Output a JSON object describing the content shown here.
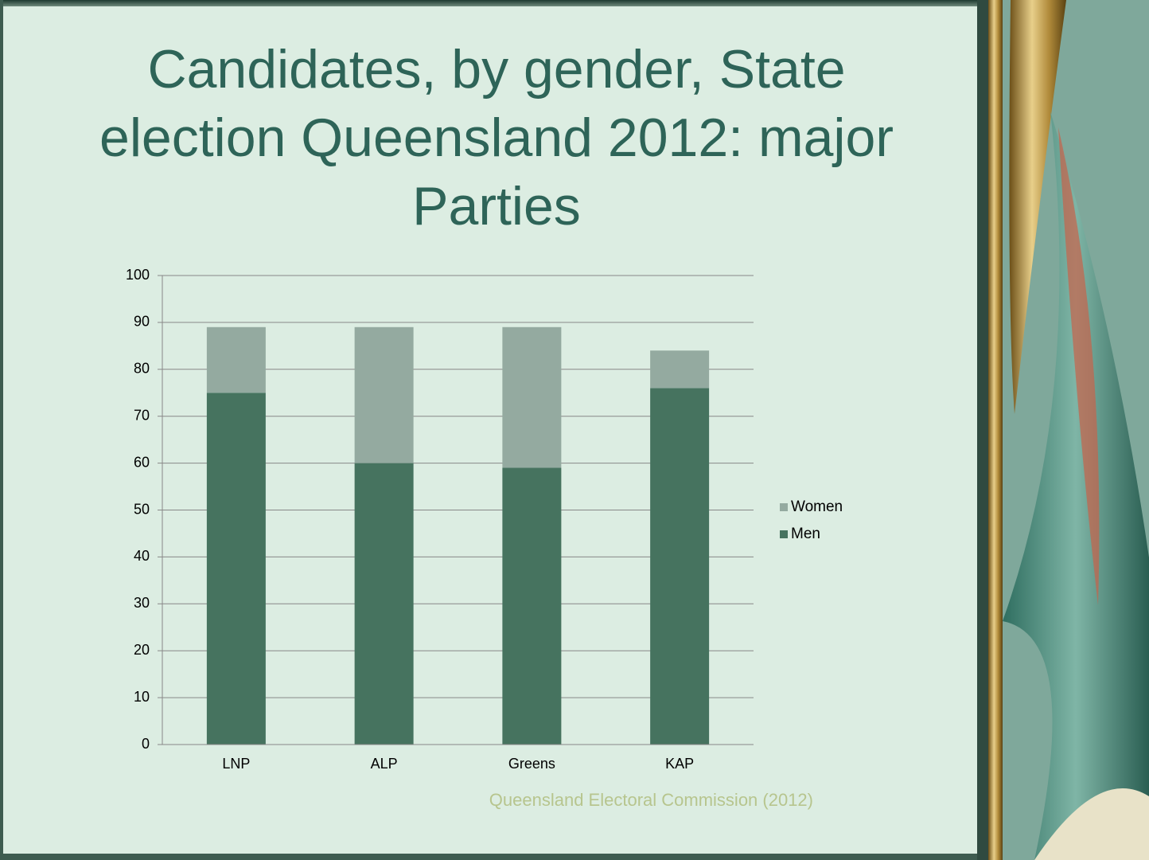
{
  "chart_data": {
    "type": "stacked_bar",
    "title": "Candidates, by gender, State election Queensland 2012: major Parties",
    "categories": [
      "LNP",
      "ALP",
      "Greens",
      "KAP"
    ],
    "series": [
      {
        "name": "Men",
        "color": "#46735f",
        "values": [
          75,
          60,
          59,
          76
        ]
      },
      {
        "name": "Women",
        "color": "#94aaa0",
        "values": [
          14,
          29,
          30,
          8
        ]
      }
    ],
    "ylim": [
      0,
      100
    ],
    "yticks": [
      0,
      10,
      20,
      30,
      40,
      50,
      60,
      70,
      80,
      90,
      100
    ],
    "grid": true,
    "legend": "right",
    "source": "Queensland Electoral Commission (2012)"
  }
}
